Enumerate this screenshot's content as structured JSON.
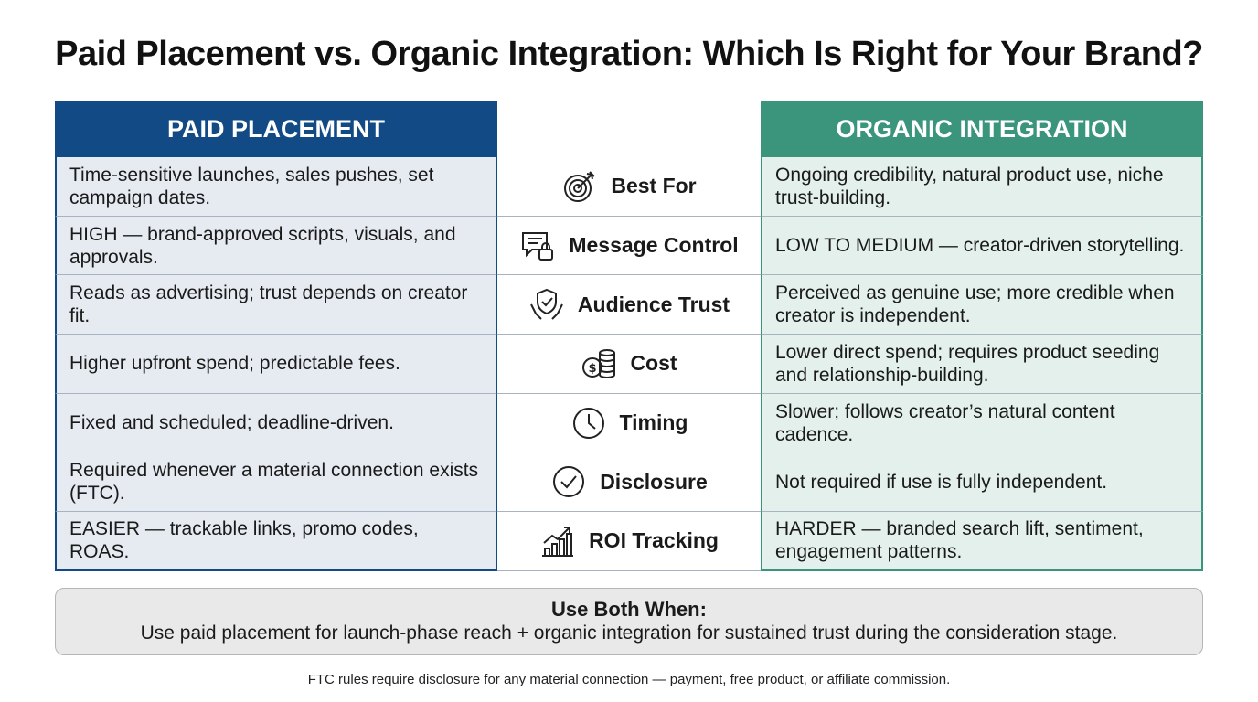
{
  "title": "Paid Placement vs. Organic Integration: Which Is Right for Your Brand?",
  "headers": {
    "paid": "PAID PLACEMENT",
    "organic": "ORGANIC INTEGRATION"
  },
  "rows": [
    {
      "criterion": "Best For",
      "icon": "target-icon",
      "paid": "Time-sensitive launches, sales pushes, set campaign dates.",
      "organic": "Ongoing credibility, natural product use, niche trust-building."
    },
    {
      "criterion": "Message Control",
      "icon": "message-lock-icon",
      "paid": "HIGH — brand-approved scripts, visuals, and approvals.",
      "organic": "LOW TO MEDIUM — creator-driven storytelling."
    },
    {
      "criterion": "Audience Trust",
      "icon": "shield-hands-icon",
      "paid": "Reads as advertising; trust depends on creator fit.",
      "organic": "Perceived as genuine use; more credible when creator is independent."
    },
    {
      "criterion": "Cost",
      "icon": "coins-icon",
      "paid": "Higher upfront spend; predictable fees.",
      "organic": "Lower direct spend; requires product seeding and relationship-building."
    },
    {
      "criterion": "Timing",
      "icon": "clock-icon",
      "paid": "Fixed and scheduled; deadline-driven.",
      "organic": "Slower; follows creator’s natural content cadence."
    },
    {
      "criterion": "Disclosure",
      "icon": "check-circle-icon",
      "paid": "Required whenever a material connection exists (FTC).",
      "organic": "Not required if use is fully independent."
    },
    {
      "criterion": "ROI Tracking",
      "icon": "growth-chart-icon",
      "paid": "EASIER — trackable links, promo codes, ROAS.",
      "organic": "HARDER — branded search lift, sentiment, engagement patterns."
    }
  ],
  "callout": {
    "title": "Use Both When:",
    "text": "Use paid placement for launch-phase reach + organic integration for sustained trust during the consideration stage."
  },
  "footnote": "FTC rules require disclosure for any material connection — payment, free product, or affiliate commission.",
  "colors": {
    "paid_header": "#124a85",
    "organic_header": "#3a957c",
    "paid_cell": "#e6ebf2",
    "organic_cell": "#e4f0ec"
  }
}
